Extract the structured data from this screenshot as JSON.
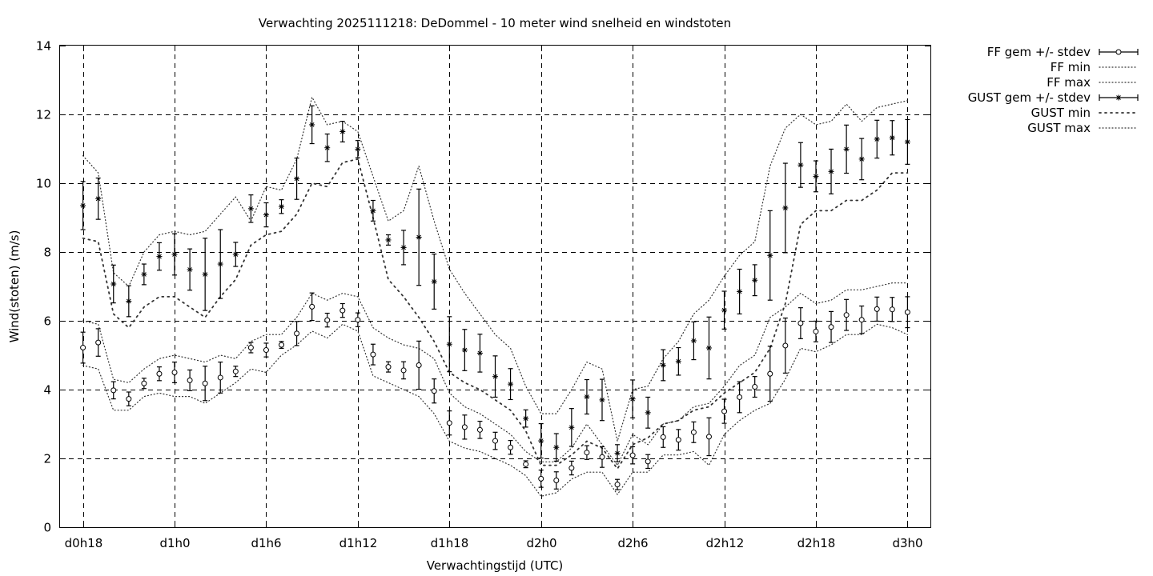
{
  "chart_data": {
    "type": "line",
    "title": "Verwachting 2025111218: DeDommel - 10 meter wind snelheid en windstoten",
    "xlabel": "Verwachtingstijd (UTC)",
    "ylabel": "Wind(stoten) (m/s)",
    "ylim": [
      0,
      14
    ],
    "yticks": [
      0,
      2,
      4,
      6,
      8,
      10,
      12,
      14
    ],
    "xlim": [
      -1.5,
      55.5
    ],
    "xticks": [
      {
        "x": 0,
        "label": "d0h18"
      },
      {
        "x": 6,
        "label": "d1h0"
      },
      {
        "x": 12,
        "label": "d1h6"
      },
      {
        "x": 18,
        "label": "d1h12"
      },
      {
        "x": 24,
        "label": "d1h18"
      },
      {
        "x": 30,
        "label": "d2h0"
      },
      {
        "x": 36,
        "label": "d2h6"
      },
      {
        "x": 42,
        "label": "d2h12"
      },
      {
        "x": 48,
        "label": "d2h18"
      },
      {
        "x": 54,
        "label": "d3h0"
      }
    ],
    "grid": true,
    "legend_position": "outside-right",
    "x": [
      0,
      1,
      2,
      3,
      4,
      5,
      6,
      7,
      8,
      9,
      10,
      11,
      12,
      13,
      14,
      15,
      16,
      17,
      18,
      19,
      20,
      21,
      22,
      23,
      24,
      25,
      26,
      27,
      28,
      29,
      30,
      31,
      32,
      33,
      34,
      35,
      36,
      37,
      38,
      39,
      40,
      41,
      42,
      43,
      44,
      45,
      46,
      47,
      48,
      49,
      50,
      51,
      52,
      53,
      54
    ],
    "series": [
      {
        "name": "FF gem +/- stdev",
        "kind": "errorbar",
        "marker": "circle",
        "values": [
          5.22,
          5.37,
          3.98,
          3.73,
          4.18,
          4.46,
          4.5,
          4.27,
          4.18,
          4.35,
          4.53,
          5.22,
          5.15,
          5.3,
          5.63,
          6.41,
          6.02,
          6.3,
          6.03,
          5.02,
          4.66,
          4.56,
          4.71,
          3.96,
          3.03,
          2.91,
          2.83,
          2.51,
          2.32,
          1.83,
          1.41,
          1.36,
          1.72,
          2.17,
          2.04,
          1.24,
          2.09,
          1.91,
          2.62,
          2.54,
          2.76,
          2.63,
          3.37,
          3.78,
          4.08,
          4.46,
          5.28,
          5.93,
          5.69,
          5.82,
          6.17,
          6.03,
          6.34,
          6.33,
          6.25
        ],
        "err": [
          0.45,
          0.4,
          0.25,
          0.2,
          0.15,
          0.2,
          0.3,
          0.3,
          0.5,
          0.45,
          0.15,
          0.15,
          0.2,
          0.1,
          0.35,
          0.4,
          0.2,
          0.2,
          0.2,
          0.3,
          0.15,
          0.25,
          0.7,
          0.35,
          0.35,
          0.35,
          0.25,
          0.25,
          0.2,
          0.1,
          0.25,
          0.25,
          0.2,
          0.2,
          0.3,
          0.15,
          0.25,
          0.2,
          0.3,
          0.3,
          0.3,
          0.55,
          0.35,
          0.45,
          0.3,
          0.8,
          0.8,
          0.45,
          0.3,
          0.45,
          0.45,
          0.4,
          0.35,
          0.35,
          0.45
        ]
      },
      {
        "name": "FF min",
        "kind": "line",
        "dash": "dotted",
        "values": [
          4.7,
          4.6,
          3.4,
          3.4,
          3.8,
          3.9,
          3.8,
          3.8,
          3.6,
          3.9,
          4.2,
          4.6,
          4.5,
          5.0,
          5.3,
          5.7,
          5.5,
          5.9,
          5.7,
          4.4,
          4.2,
          4.0,
          3.8,
          3.3,
          2.5,
          2.3,
          2.2,
          2.0,
          1.8,
          1.5,
          0.9,
          1.0,
          1.4,
          1.6,
          1.6,
          0.95,
          1.6,
          1.6,
          2.1,
          2.1,
          2.2,
          1.8,
          2.7,
          3.1,
          3.4,
          3.6,
          4.3,
          5.2,
          5.1,
          5.3,
          5.6,
          5.6,
          5.9,
          5.8,
          5.6
        ]
      },
      {
        "name": "FF max",
        "kind": "line",
        "dash": "dotted",
        "values": [
          6.0,
          5.9,
          4.3,
          4.2,
          4.6,
          4.9,
          5.0,
          4.9,
          4.8,
          5.0,
          4.9,
          5.4,
          5.6,
          5.6,
          6.1,
          6.8,
          6.6,
          6.8,
          6.7,
          5.8,
          5.5,
          5.3,
          5.2,
          4.9,
          3.9,
          3.5,
          3.3,
          3.0,
          2.7,
          2.2,
          1.9,
          1.9,
          2.3,
          3.0,
          2.4,
          1.8,
          2.7,
          2.4,
          3.0,
          3.1,
          3.5,
          3.6,
          4.1,
          4.7,
          5.0,
          6.1,
          6.4,
          6.8,
          6.5,
          6.6,
          6.9,
          6.9,
          7.0,
          7.1,
          7.1
        ]
      },
      {
        "name": "GUST gem +/- stdev",
        "kind": "errorbar",
        "marker": "star",
        "values": [
          9.35,
          9.55,
          7.07,
          6.57,
          7.35,
          7.87,
          7.93,
          7.49,
          7.35,
          7.65,
          7.93,
          9.26,
          9.08,
          9.32,
          10.13,
          11.7,
          11.03,
          11.5,
          10.99,
          9.2,
          8.35,
          8.13,
          8.43,
          7.14,
          5.32,
          5.15,
          5.06,
          4.38,
          4.16,
          3.16,
          2.51,
          2.32,
          2.9,
          3.79,
          3.7,
          2.15,
          3.73,
          3.33,
          4.71,
          4.82,
          5.42,
          5.21,
          6.31,
          6.85,
          7.18,
          7.9,
          9.28,
          10.53,
          10.2,
          10.34,
          10.99,
          10.7,
          11.28,
          11.32,
          11.2
        ],
        "err": [
          0.7,
          0.6,
          0.55,
          0.45,
          0.3,
          0.4,
          0.6,
          0.6,
          1.05,
          1.0,
          0.35,
          0.4,
          0.35,
          0.2,
          0.6,
          0.55,
          0.4,
          0.3,
          0.25,
          0.3,
          0.15,
          0.5,
          1.4,
          0.8,
          0.8,
          0.6,
          0.55,
          0.6,
          0.45,
          0.25,
          0.5,
          0.4,
          0.55,
          0.5,
          0.6,
          0.25,
          0.55,
          0.45,
          0.45,
          0.4,
          0.55,
          0.9,
          0.55,
          0.65,
          0.45,
          1.3,
          1.3,
          0.65,
          0.45,
          0.65,
          0.7,
          0.6,
          0.55,
          0.5,
          0.65
        ]
      },
      {
        "name": "GUST min",
        "kind": "line",
        "dash": "dashed-dots",
        "values": [
          8.4,
          8.3,
          6.2,
          5.8,
          6.4,
          6.7,
          6.7,
          6.4,
          6.1,
          6.7,
          7.2,
          8.2,
          8.5,
          8.6,
          9.1,
          10.0,
          9.9,
          10.6,
          10.7,
          9.0,
          7.2,
          6.7,
          6.1,
          5.4,
          4.5,
          4.2,
          4.0,
          3.7,
          3.4,
          2.8,
          1.8,
          1.8,
          2.1,
          2.5,
          2.3,
          1.7,
          2.4,
          2.6,
          3.0,
          3.1,
          3.4,
          3.5,
          3.9,
          4.2,
          4.5,
          5.2,
          6.5,
          8.8,
          9.2,
          9.2,
          9.5,
          9.5,
          9.8,
          10.3,
          10.3
        ]
      },
      {
        "name": "GUST max",
        "kind": "line",
        "dash": "dotted",
        "values": [
          10.8,
          10.3,
          7.4,
          7.0,
          8.0,
          8.5,
          8.6,
          8.5,
          8.6,
          9.1,
          9.6,
          8.9,
          9.9,
          9.8,
          10.7,
          12.5,
          11.7,
          11.8,
          11.5,
          10.2,
          8.9,
          9.2,
          10.5,
          8.9,
          7.5,
          6.8,
          6.2,
          5.6,
          5.2,
          4.1,
          3.3,
          3.3,
          4.0,
          4.8,
          4.6,
          2.5,
          4.0,
          4.1,
          4.9,
          5.4,
          6.2,
          6.6,
          7.3,
          7.9,
          8.3,
          10.5,
          11.6,
          12.0,
          11.7,
          11.8,
          12.3,
          11.8,
          12.2,
          12.3,
          12.4
        ]
      }
    ]
  }
}
